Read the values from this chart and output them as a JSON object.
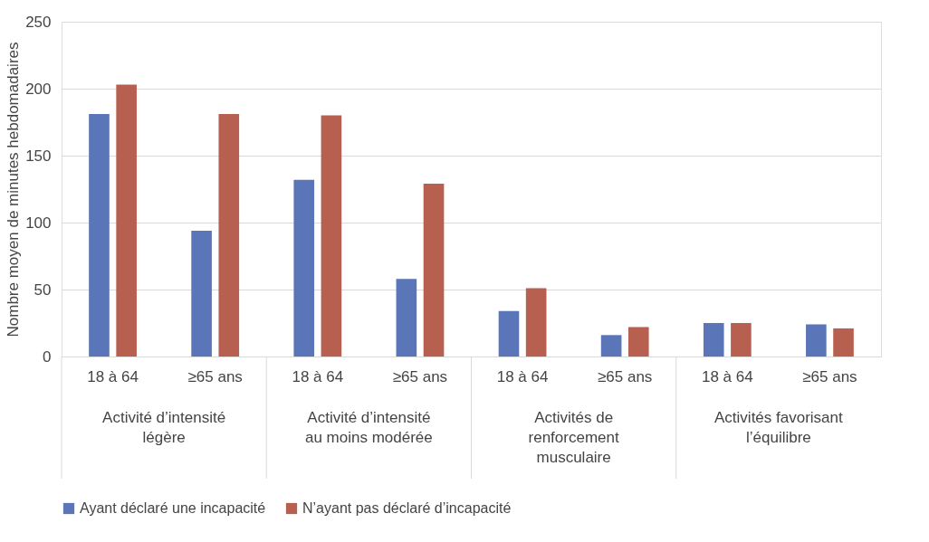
{
  "chart_data": {
    "type": "bar",
    "ylabel": "Nombre moyen de minutes hebdomadaires",
    "categories": [
      "18 à 64",
      "≥65 ans",
      "18 à 64",
      "≥65 ans",
      "18 à 64",
      "≥65 ans",
      "18 à 64",
      "≥65 ans"
    ],
    "series": [
      {
        "name": "Ayant déclaré une incapacité",
        "color": "#5a76b8",
        "values": [
          181,
          94,
          132,
          58,
          34,
          16,
          25,
          24
        ]
      },
      {
        "name": "N’ayant pas déclaré d’incapacité",
        "color": "#b86050",
        "values": [
          203,
          181,
          180,
          129,
          51,
          22,
          25,
          21
        ]
      }
    ],
    "annotations": [
      "Activité d’intensité\nlégère",
      "Activité d’intensité\nau moins modérée",
      "Activités de\nrenforcement\nmusculaire",
      "Activités favorisant\nl’équilibre"
    ],
    "ylim": [
      0,
      250
    ],
    "yticks": [
      0,
      50,
      100,
      150,
      200,
      250
    ],
    "grid": "y",
    "legend": "bottom"
  }
}
